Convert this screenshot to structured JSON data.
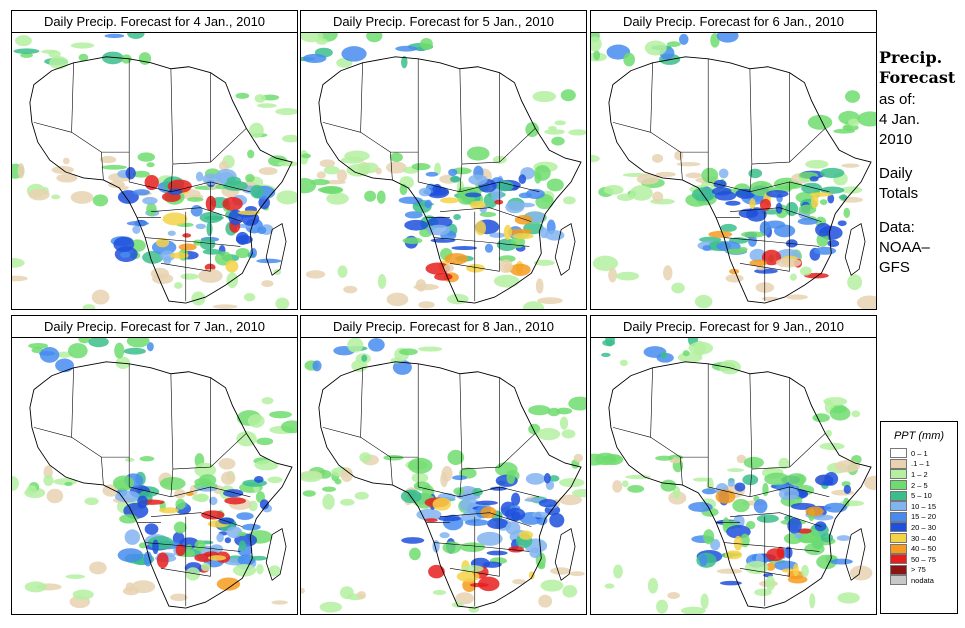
{
  "panels": [
    {
      "title": "Daily Precip. Forecast for  4 Jan., 2010",
      "seed": 11
    },
    {
      "title": "Daily Precip. Forecast for  5 Jan., 2010",
      "seed": 23
    },
    {
      "title": "Daily Precip. Forecast for  6 Jan., 2010",
      "seed": 37
    },
    {
      "title": "Daily Precip. Forecast for  7 Jan., 2010",
      "seed": 41
    },
    {
      "title": "Daily Precip. Forecast for  8 Jan., 2010",
      "seed": 53
    },
    {
      "title": "Daily Precip. Forecast for  9 Jan., 2010",
      "seed": 67
    }
  ],
  "side": {
    "heading1": "Precip.",
    "heading2": "Forecast",
    "line1": "as of:",
    "line2": "4 Jan.",
    "line3": "2010",
    "line4": "Daily",
    "line5": "Totals",
    "line6": "Data:",
    "line7": "NOAA–",
    "line8": "GFS"
  },
  "legend": {
    "title": "PPT (mm)",
    "items": [
      {
        "label": "0 – 1",
        "color": "#ffffff"
      },
      {
        "label": ".1 – 1",
        "color": "#e8d2b2"
      },
      {
        "label": "1 – 2",
        "color": "#b4f0a0"
      },
      {
        "label": "2 – 5",
        "color": "#6edc6e"
      },
      {
        "label": "5 – 10",
        "color": "#3cbe8c"
      },
      {
        "label": "10 – 15",
        "color": "#82b4f0"
      },
      {
        "label": "15 – 20",
        "color": "#468cf0"
      },
      {
        "label": "20 – 30",
        "color": "#1e50dc"
      },
      {
        "label": "30 – 40",
        "color": "#f5d246"
      },
      {
        "label": "40 – 50",
        "color": "#f59b1e"
      },
      {
        "label": "50 – 75",
        "color": "#e61e1e"
      },
      {
        "label": "> 75",
        "color": "#8c1414"
      },
      {
        "label": "nodata",
        "color": "#c8c8c8"
      }
    ]
  }
}
